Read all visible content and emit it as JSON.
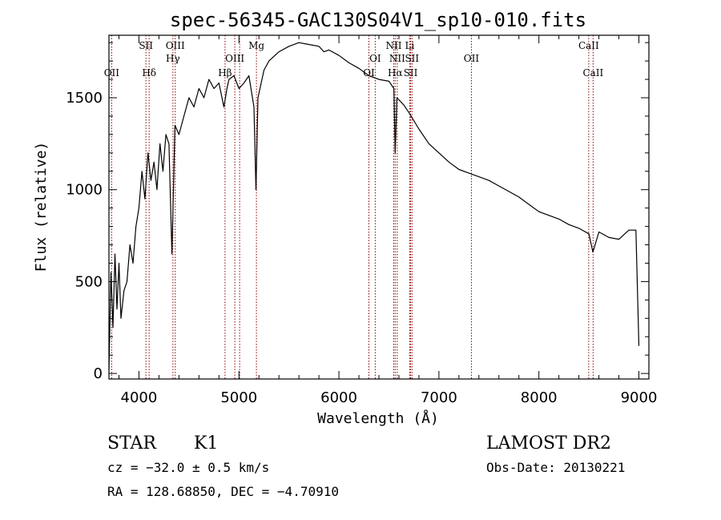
{
  "chart_data": {
    "type": "line",
    "title": "spec-56345-GAC130S04V1_sp10-010.fits",
    "xlabel": "Wavelength (Å)",
    "ylabel": "Flux (relative)",
    "xlim": [
      3700,
      9100
    ],
    "ylim": [
      -30,
      1840
    ],
    "x_ticks": [
      {
        "value": 4000,
        "label": "4000"
      },
      {
        "value": 5000,
        "label": "5000"
      },
      {
        "value": 6000,
        "label": "6000"
      },
      {
        "value": 7000,
        "label": "7000"
      },
      {
        "value": 8000,
        "label": "8000"
      },
      {
        "value": 9000,
        "label": "9000"
      }
    ],
    "y_ticks": [
      {
        "value": 0,
        "label": "0"
      },
      {
        "value": 500,
        "label": "500"
      },
      {
        "value": 1000,
        "label": "1000"
      },
      {
        "value": 1500,
        "label": "1500"
      }
    ],
    "grid": false,
    "line_color": "#000000",
    "marker_color": "#8b0000",
    "series": [
      {
        "x": [
          3700,
          3720,
          3740,
          3760,
          3780,
          3800,
          3820,
          3850,
          3880,
          3910,
          3940,
          3970,
          4000,
          4030,
          4060,
          4090,
          4120,
          4150,
          4180,
          4210,
          4240,
          4270,
          4300,
          4330,
          4360,
          4400,
          4450,
          4500,
          4550,
          4600,
          4650,
          4700,
          4750,
          4800,
          4850,
          4880,
          4900,
          4950,
          5000,
          5050,
          5100,
          5150,
          5170,
          5190,
          5250,
          5300,
          5400,
          5500,
          5600,
          5700,
          5800,
          5850,
          5900,
          6000,
          6100,
          6200,
          6300,
          6400,
          6500,
          6550,
          6563,
          6580,
          6650,
          6700,
          6800,
          6900,
          7000,
          7100,
          7200,
          7300,
          7400,
          7500,
          7600,
          7700,
          7800,
          7900,
          8000,
          8100,
          8200,
          8300,
          8400,
          8500,
          8540,
          8600,
          8700,
          8800,
          8900,
          8970,
          9000
        ],
        "y": [
          20,
          550,
          250,
          650,
          350,
          600,
          300,
          450,
          500,
          700,
          600,
          800,
          900,
          1100,
          950,
          1200,
          1050,
          1150,
          1000,
          1250,
          1100,
          1300,
          1250,
          650,
          1350,
          1300,
          1400,
          1500,
          1450,
          1550,
          1500,
          1600,
          1550,
          1580,
          1450,
          1550,
          1600,
          1620,
          1550,
          1580,
          1620,
          1450,
          1000,
          1500,
          1650,
          1700,
          1750,
          1780,
          1800,
          1790,
          1780,
          1750,
          1760,
          1730,
          1690,
          1660,
          1620,
          1600,
          1590,
          1550,
          1200,
          1500,
          1460,
          1420,
          1330,
          1250,
          1200,
          1150,
          1110,
          1090,
          1070,
          1050,
          1020,
          990,
          960,
          920,
          880,
          860,
          840,
          810,
          790,
          760,
          660,
          770,
          740,
          730,
          780,
          780,
          150
        ]
      }
    ],
    "line_markers": [
      {
        "wavelength": 3727,
        "label": "OII",
        "row": 3
      },
      {
        "wavelength": 4070,
        "label": "SII",
        "row": 1
      },
      {
        "wavelength": 4102,
        "label": "Hδ",
        "row": 3
      },
      {
        "wavelength": 4340,
        "label": "Hγ",
        "row": 2
      },
      {
        "wavelength": 4363,
        "label": "OIII",
        "row": 1
      },
      {
        "wavelength": 4861,
        "label": "Hβ",
        "row": 3
      },
      {
        "wavelength": 4959,
        "label": "OIII",
        "row": 2
      },
      {
        "wavelength": 5007,
        "label": "",
        "row": 0
      },
      {
        "wavelength": 5175,
        "label": "Mg",
        "row": 1
      },
      {
        "wavelength": 6300,
        "label": "OI",
        "row": 3
      },
      {
        "wavelength": 6363,
        "label": "OI",
        "row": 2
      },
      {
        "wavelength": 6548,
        "label": "NII",
        "row": 1
      },
      {
        "wavelength": 6563,
        "label": "Hα",
        "row": 3
      },
      {
        "wavelength": 6583,
        "label": "NII",
        "row": 2
      },
      {
        "wavelength": 6708,
        "label": "Li",
        "row": 1
      },
      {
        "wavelength": 6717,
        "label": "SII",
        "row": 3
      },
      {
        "wavelength": 6731,
        "label": "SII",
        "row": 2
      },
      {
        "wavelength": 7325,
        "label": "OII",
        "row": 2
      },
      {
        "wavelength": 8498,
        "label": "CaII",
        "row": 1
      },
      {
        "wavelength": 8542,
        "label": "CaII",
        "row": 3
      }
    ]
  },
  "info": {
    "class": "STAR",
    "subclass": "K1",
    "cz": "cz = −32.0 ± 0.5 km/s",
    "coords": "RA = 128.68850, DEC =  −4.70910",
    "survey": "LAMOST DR2",
    "obs_date": "Obs-Date: 20130221"
  }
}
